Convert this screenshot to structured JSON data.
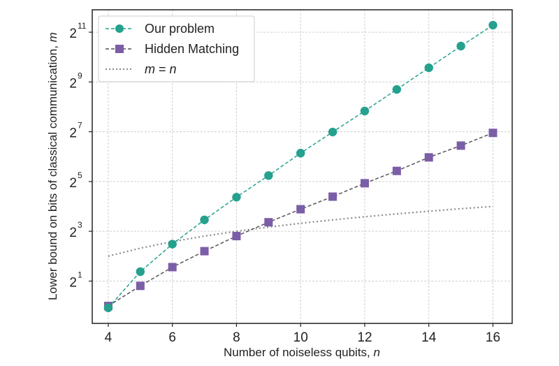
{
  "chart_data": {
    "type": "line",
    "title": "",
    "xlabel": "Number of noiseless qubits, ",
    "xlabel_var": "n",
    "ylabel": "Lower bound on bits of classical communication, ",
    "ylabel_var": "m",
    "yscale": "log2",
    "x": [
      4,
      5,
      6,
      7,
      8,
      9,
      10,
      11,
      12,
      13,
      14,
      15,
      16
    ],
    "xlim": [
      3.5,
      16.6
    ],
    "ylim_log2": [
      -0.7,
      11.9
    ],
    "x_ticks": [
      4,
      6,
      8,
      10,
      12,
      14,
      16
    ],
    "y_ticks": [
      {
        "base": "2",
        "exp": "1",
        "log2": 1
      },
      {
        "base": "2",
        "exp": "3",
        "log2": 3
      },
      {
        "base": "2",
        "exp": "5",
        "log2": 5
      },
      {
        "base": "2",
        "exp": "7",
        "log2": 7
      },
      {
        "base": "2",
        "exp": "9",
        "log2": 9
      },
      {
        "base": "2",
        "exp": "11",
        "log2": 11
      }
    ],
    "grid": true,
    "legend_position": "top-left",
    "series": [
      {
        "name": "Our problem",
        "color": "#25a18e",
        "marker": "circle",
        "linestyle": "dashed",
        "values": [
          0.95,
          2.6,
          5.6,
          11,
          20.7,
          37.8,
          70.6,
          127,
          228,
          416,
          760,
          1390,
          2490
        ]
      },
      {
        "name": "Hidden Matching",
        "color": "#7b5ea7",
        "marker": "square",
        "linestyle": "dashed",
        "values": [
          1,
          1.75,
          2.95,
          4.6,
          7,
          10.3,
          14.8,
          21,
          30.5,
          43,
          62.7,
          87,
          124
        ]
      },
      {
        "name": "m = n",
        "name_parts": [
          "m",
          " = ",
          "n"
        ],
        "color": "#8a8a8a",
        "marker": "none",
        "linestyle": "dotted",
        "values": [
          4,
          5,
          6,
          7,
          8,
          9,
          10,
          11,
          12,
          13,
          14,
          15,
          16
        ]
      }
    ]
  }
}
